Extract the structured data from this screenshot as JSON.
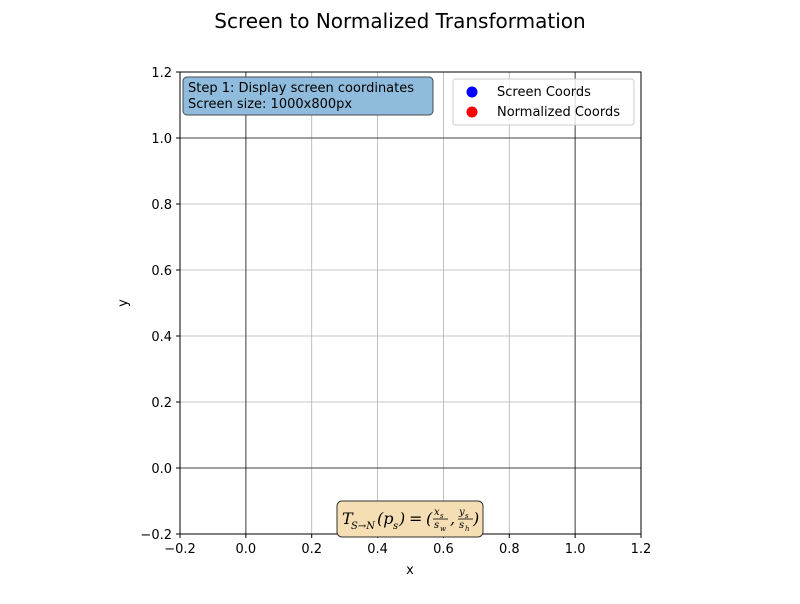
{
  "chart_data": {
    "type": "scatter",
    "title": "Screen to Normalized Transformation",
    "xlabel": "x",
    "ylabel": "y",
    "xlim": [
      -0.2,
      1.2
    ],
    "ylim": [
      -0.2,
      1.2
    ],
    "xticks": [
      "−0.2",
      "0.0",
      "0.2",
      "0.4",
      "0.6",
      "0.8",
      "1.0",
      "1.2"
    ],
    "yticks": [
      "−0.2",
      "0.0",
      "0.2",
      "0.4",
      "0.6",
      "0.8",
      "1.0",
      "1.2"
    ],
    "grid": true,
    "reference_lines": {
      "vertical_x": [
        0.0,
        1.0
      ],
      "horizontal_y": [
        0.0,
        1.0
      ]
    },
    "series": [
      {
        "name": "Screen Coords",
        "color": "#0000ff",
        "points": []
      },
      {
        "name": "Normalized Coords",
        "color": "#ff0000",
        "points": []
      }
    ],
    "legend_position": "top-right",
    "annotation": {
      "line1": "Step 1: Display screen coordinates",
      "line2": "Screen size: 1000x800px",
      "background": "#8fbcdc",
      "position": "top-left"
    },
    "formula": {
      "lhs_symbol": "T",
      "lhs_subscript": "S→N",
      "lhs_arg": "(p",
      "lhs_arg_subscript": "s",
      "lhs_close": ")",
      "equals": "=",
      "open": "(",
      "frac1_num": "x",
      "frac1_num_sub": "s",
      "frac1_den": "s",
      "frac1_den_sub": "w",
      "comma": ",",
      "frac2_num": "y",
      "frac2_num_sub": "s",
      "frac2_den": "s",
      "frac2_den_sub": "h",
      "close": ")",
      "background": "#f5deb3",
      "position": "bottom-center"
    }
  }
}
